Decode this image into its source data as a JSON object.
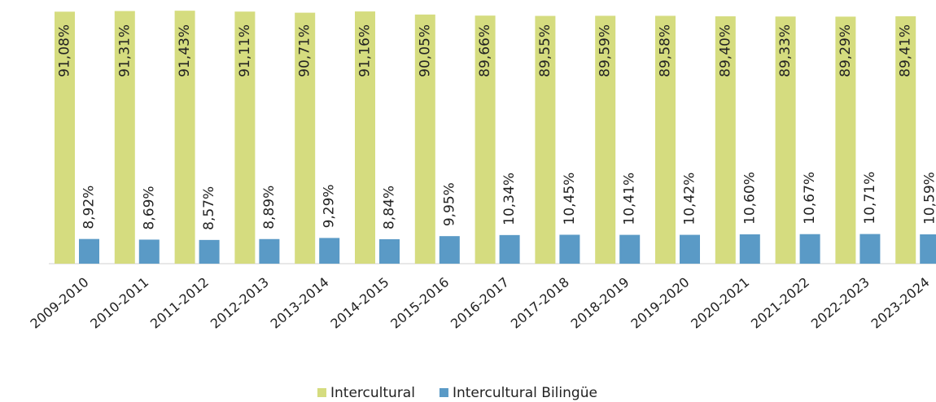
{
  "chart_data": {
    "type": "bar",
    "categories": [
      "2009-2010",
      "2010-2011",
      "2011-2012",
      "2012-2013",
      "2013-2014",
      "2014-2015",
      "2015-2016",
      "2016-2017",
      "2017-2018",
      "2018-2019",
      "2019-2020",
      "2020-2021",
      "2021-2022",
      "2022-2023",
      "2023-2024"
    ],
    "series": [
      {
        "name": "Intercultural",
        "color": "#d5dc7f",
        "values": [
          91.08,
          91.31,
          91.43,
          91.11,
          90.71,
          91.16,
          90.05,
          89.66,
          89.55,
          89.59,
          89.58,
          89.4,
          89.33,
          89.29,
          89.41
        ],
        "value_labels": [
          "91,08%",
          "91,31%",
          "91,43%",
          "91,11%",
          "90,71%",
          "91,16%",
          "90,05%",
          "89,66%",
          "89,55%",
          "89,59%",
          "89,58%",
          "89,40%",
          "89,33%",
          "89,29%",
          "89,41%"
        ]
      },
      {
        "name": "Intercultural Bilingüe",
        "color": "#5a9ac6",
        "values": [
          8.92,
          8.69,
          8.57,
          8.89,
          9.29,
          8.84,
          9.95,
          10.34,
          10.45,
          10.41,
          10.42,
          10.6,
          10.67,
          10.71,
          10.59
        ],
        "value_labels": [
          "8,92%",
          "8,69%",
          "8,57%",
          "8,89%",
          "9,29%",
          "8,84%",
          "9,95%",
          "10,34%",
          "10,45%",
          "10,41%",
          "10,42%",
          "10,60%",
          "10,67%",
          "10,71%",
          "10,59%"
        ]
      }
    ],
    "ylim": [
      0,
      95.3
    ],
    "legend": "bottom"
  }
}
